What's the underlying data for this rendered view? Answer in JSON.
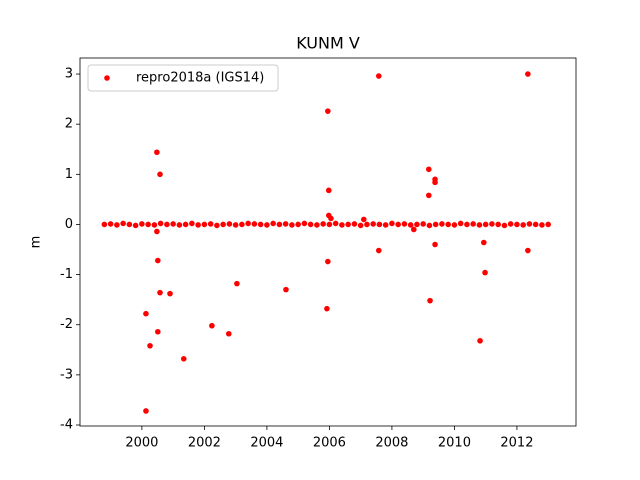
{
  "chart_data": {
    "type": "scatter",
    "title": "KUNM V",
    "y_label": "m",
    "xlim": [
      1998.02,
      2013.89
    ],
    "ylim": [
      -4.02,
      3.32
    ],
    "xticks": [
      2000,
      2002,
      2004,
      2006,
      2008,
      2010,
      2012
    ],
    "yticks": [
      -4,
      -3,
      -2,
      -1,
      0,
      1,
      2,
      3
    ],
    "legend": "upper left",
    "series": [
      {
        "name": "repro2018a (IGS14)",
        "color": "#ff0000",
        "x": [
          1998.8,
          1999.0,
          1999.2,
          1999.4,
          1999.6,
          1999.8,
          2000.0,
          2000.2,
          2000.4,
          2000.6,
          2000.8,
          2001.0,
          2001.2,
          2001.4,
          2001.6,
          2001.8,
          2002.0,
          2002.2,
          2002.4,
          2002.6,
          2002.8,
          2003.0,
          2003.2,
          2003.4,
          2003.6,
          2003.8,
          2004.0,
          2004.2,
          2004.4,
          2004.6,
          2004.8,
          2005.0,
          2005.2,
          2005.4,
          2005.6,
          2005.8,
          2006.0,
          2006.2,
          2006.4,
          2006.6,
          2006.8,
          2007.0,
          2007.2,
          2007.4,
          2007.6,
          2007.8,
          2008.0,
          2008.2,
          2008.4,
          2008.6,
          2008.8,
          2009.0,
          2009.2,
          2009.4,
          2009.6,
          2009.8,
          2010.0,
          2010.2,
          2010.4,
          2010.6,
          2010.8,
          2011.0,
          2011.2,
          2011.4,
          2011.6,
          2011.8,
          2012.0,
          2012.2,
          2012.4,
          2012.6,
          2012.8,
          2013.0,
          2000.13,
          2000.13,
          2000.26,
          2000.48,
          2000.48,
          2000.51,
          2000.51,
          2000.58,
          2000.58,
          2000.9,
          2001.34,
          2002.24,
          2002.78,
          2003.04,
          2004.61,
          2005.95,
          2005.98,
          2005.95,
          2005.92,
          2005.98,
          2006.05,
          2007.1,
          2007.58,
          2007.58,
          2008.7,
          2009.18,
          2009.18,
          2009.22,
          2009.38,
          2009.38,
          2009.38,
          2010.82,
          2010.94,
          2010.98,
          2012.35,
          2012.35
        ],
        "values": [
          0.0,
          0.01,
          -0.01,
          0.02,
          0.0,
          -0.02,
          0.01,
          0.0,
          -0.01,
          0.02,
          0.0,
          0.01,
          -0.01,
          0.0,
          0.02,
          -0.01,
          0.0,
          0.01,
          -0.02,
          0.0,
          0.01,
          -0.01,
          0.0,
          0.02,
          0.01,
          0.0,
          -0.01,
          0.02,
          0.0,
          0.01,
          -0.01,
          0.0,
          0.02,
          0.0,
          -0.01,
          0.01,
          0.0,
          0.02,
          -0.01,
          0.0,
          0.01,
          -0.02,
          0.0,
          0.01,
          0.0,
          -0.01,
          0.02,
          0.0,
          0.01,
          -0.01,
          0.0,
          0.01,
          -0.02,
          0.0,
          0.01,
          0.0,
          -0.01,
          0.02,
          0.0,
          0.01,
          -0.01,
          0.0,
          0.01,
          0.0,
          -0.02,
          0.01,
          0.0,
          -0.01,
          0.01,
          0.0,
          -0.01,
          0.0,
          -1.78,
          -3.72,
          -2.42,
          1.44,
          -0.14,
          -0.72,
          -2.14,
          1.0,
          -1.36,
          -1.38,
          -2.68,
          -2.02,
          -2.18,
          -1.18,
          -1.3,
          2.26,
          0.68,
          -0.74,
          -1.68,
          0.18,
          0.12,
          0.1,
          2.96,
          -0.52,
          -0.1,
          1.1,
          0.58,
          -1.52,
          0.9,
          0.84,
          -0.4,
          -2.32,
          -0.36,
          -0.96,
          3.0,
          -0.52
        ]
      }
    ]
  }
}
